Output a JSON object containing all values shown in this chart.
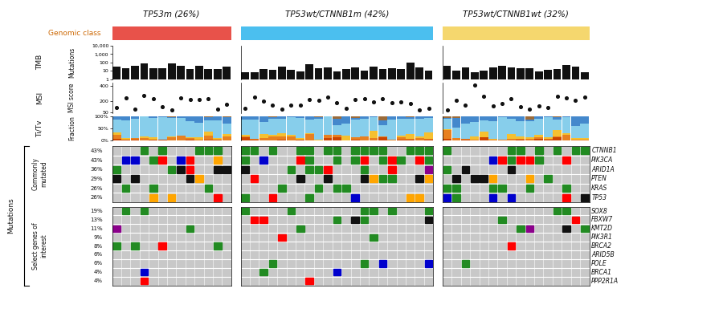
{
  "groups": [
    {
      "label": "TP53m (26%)",
      "color": "#E8524A",
      "n": 13
    },
    {
      "label": "TP53wt/CTNNB1m (42%)",
      "color": "#4BBFEF",
      "n": 21
    },
    {
      "label": "TP53wt/CTNNB1wt (32%)",
      "color": "#F5D76E",
      "n": 16
    }
  ],
  "genomic_class_label": "Genomic class",
  "commonly_mutated_genes": [
    "CTNNB1",
    "PIK3CA",
    "ARID1A",
    "PTEN",
    "KRAS",
    "TP53"
  ],
  "commonly_mutated_pct": [
    "43%",
    "43%",
    "36%",
    "29%",
    "26%",
    "26%"
  ],
  "select_genes": [
    "SOX8",
    "FBXW7",
    "KMT2D",
    "PIK3R1",
    "BRCA2",
    "ARID5B",
    "POLE",
    "BRCA1",
    "PPP2R1A"
  ],
  "select_genes_pct": [
    "19%",
    "13%",
    "11%",
    "9%",
    "8%",
    "6%",
    "6%",
    "4%",
    "4%"
  ],
  "titv_colors": [
    "#CC4400",
    "#E88020",
    "#F5C030",
    "#87CEEB",
    "#4488CC",
    "#9B6B3A"
  ],
  "background_color": "#FFFFFF",
  "panel_bg": "#C8C8C8"
}
